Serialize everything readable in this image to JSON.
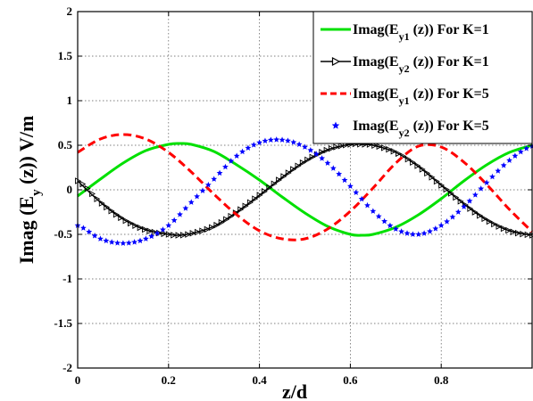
{
  "chart_data": {
    "type": "line",
    "xlabel": "z/d",
    "ylabel": "Imag (E_y (z)) V/m",
    "xlim": [
      0,
      1
    ],
    "ylim": [
      -2,
      2
    ],
    "xticks": [
      0,
      0.2,
      0.4,
      0.6,
      0.8,
      1
    ],
    "yticks": [
      -2,
      -1.5,
      -1,
      -0.5,
      0,
      0.5,
      1,
      1.5,
      2
    ],
    "xtick_labels": [
      "0",
      "0.2",
      "0.4",
      "0.6",
      "0.8",
      ""
    ],
    "ytick_labels": [
      "-2",
      "-1.5",
      "-1",
      "-0.5",
      "0",
      "0.5",
      "1",
      "1.5",
      "2"
    ],
    "grid": true,
    "legend_position": "top-right",
    "series": [
      {
        "name": "Imag(Ey1 (z)) For K=1",
        "name_parts": {
          "pre": "Imag(E",
          "sub": "y1",
          "post": " (z)) For K=1"
        },
        "color": "#00e000",
        "style": "solid",
        "marker": "none",
        "x": [
          0,
          0.05,
          0.1,
          0.15,
          0.2,
          0.225,
          0.25,
          0.3,
          0.35,
          0.4,
          0.45,
          0.5,
          0.55,
          0.6,
          0.625,
          0.65,
          0.7,
          0.75,
          0.8,
          0.85,
          0.9,
          0.95,
          1
        ],
        "y": [
          -0.07,
          0.12,
          0.3,
          0.44,
          0.51,
          0.52,
          0.51,
          0.43,
          0.28,
          0.11,
          -0.08,
          -0.26,
          -0.41,
          -0.5,
          -0.51,
          -0.5,
          -0.42,
          -0.28,
          -0.1,
          0.1,
          0.28,
          0.42,
          0.5
        ]
      },
      {
        "name": "Imag(Ey2 (z)) For K=1",
        "name_parts": {
          "pre": "Imag(E",
          "sub": "y2",
          "post": " (z)) For K=1"
        },
        "color": "#000000",
        "style": "solid",
        "marker": "triangle-right",
        "x": [
          0,
          0.05,
          0.1,
          0.15,
          0.2,
          0.225,
          0.25,
          0.3,
          0.35,
          0.4,
          0.45,
          0.5,
          0.55,
          0.6,
          0.625,
          0.65,
          0.7,
          0.75,
          0.8,
          0.85,
          0.9,
          0.95,
          1
        ],
        "y": [
          0.1,
          -0.14,
          -0.33,
          -0.45,
          -0.5,
          -0.51,
          -0.49,
          -0.41,
          -0.25,
          -0.06,
          0.14,
          0.32,
          0.45,
          0.51,
          0.51,
          0.5,
          0.42,
          0.26,
          0.05,
          -0.16,
          -0.34,
          -0.46,
          -0.51
        ]
      },
      {
        "name": "Imag(Ey1 (z)) For K=5",
        "name_parts": {
          "pre": "Imag(E",
          "sub": "y1",
          "post": " (z)) For K=5"
        },
        "color": "#ff0000",
        "style": "dashed",
        "marker": "none",
        "x": [
          0,
          0.05,
          0.1,
          0.15,
          0.2,
          0.25,
          0.3,
          0.35,
          0.4,
          0.45,
          0.5,
          0.55,
          0.6,
          0.65,
          0.7,
          0.75,
          0.8,
          0.85,
          0.9,
          0.95,
          1
        ],
        "y": [
          0.42,
          0.57,
          0.62,
          0.57,
          0.42,
          0.2,
          -0.05,
          -0.28,
          -0.46,
          -0.55,
          -0.55,
          -0.44,
          -0.24,
          0.02,
          0.3,
          0.49,
          0.48,
          0.31,
          0.06,
          -0.22,
          -0.47
        ]
      },
      {
        "name": "Imag(Ey2 (z)) For K=5",
        "name_parts": {
          "pre": "Imag(E",
          "sub": "y2",
          "post": " (z)) For K=5"
        },
        "color": "#0000ff",
        "style": "none",
        "marker": "star",
        "x": [
          0,
          0.05,
          0.1,
          0.15,
          0.2,
          0.25,
          0.3,
          0.35,
          0.4,
          0.45,
          0.5,
          0.55,
          0.6,
          0.65,
          0.7,
          0.75,
          0.8,
          0.85,
          0.9,
          0.95,
          1
        ],
        "y": [
          -0.4,
          -0.55,
          -0.6,
          -0.55,
          -0.4,
          -0.14,
          0.12,
          0.38,
          0.53,
          0.56,
          0.48,
          0.3,
          0.04,
          -0.24,
          -0.44,
          -0.5,
          -0.4,
          -0.19,
          0.08,
          0.33,
          0.49
        ]
      }
    ]
  }
}
